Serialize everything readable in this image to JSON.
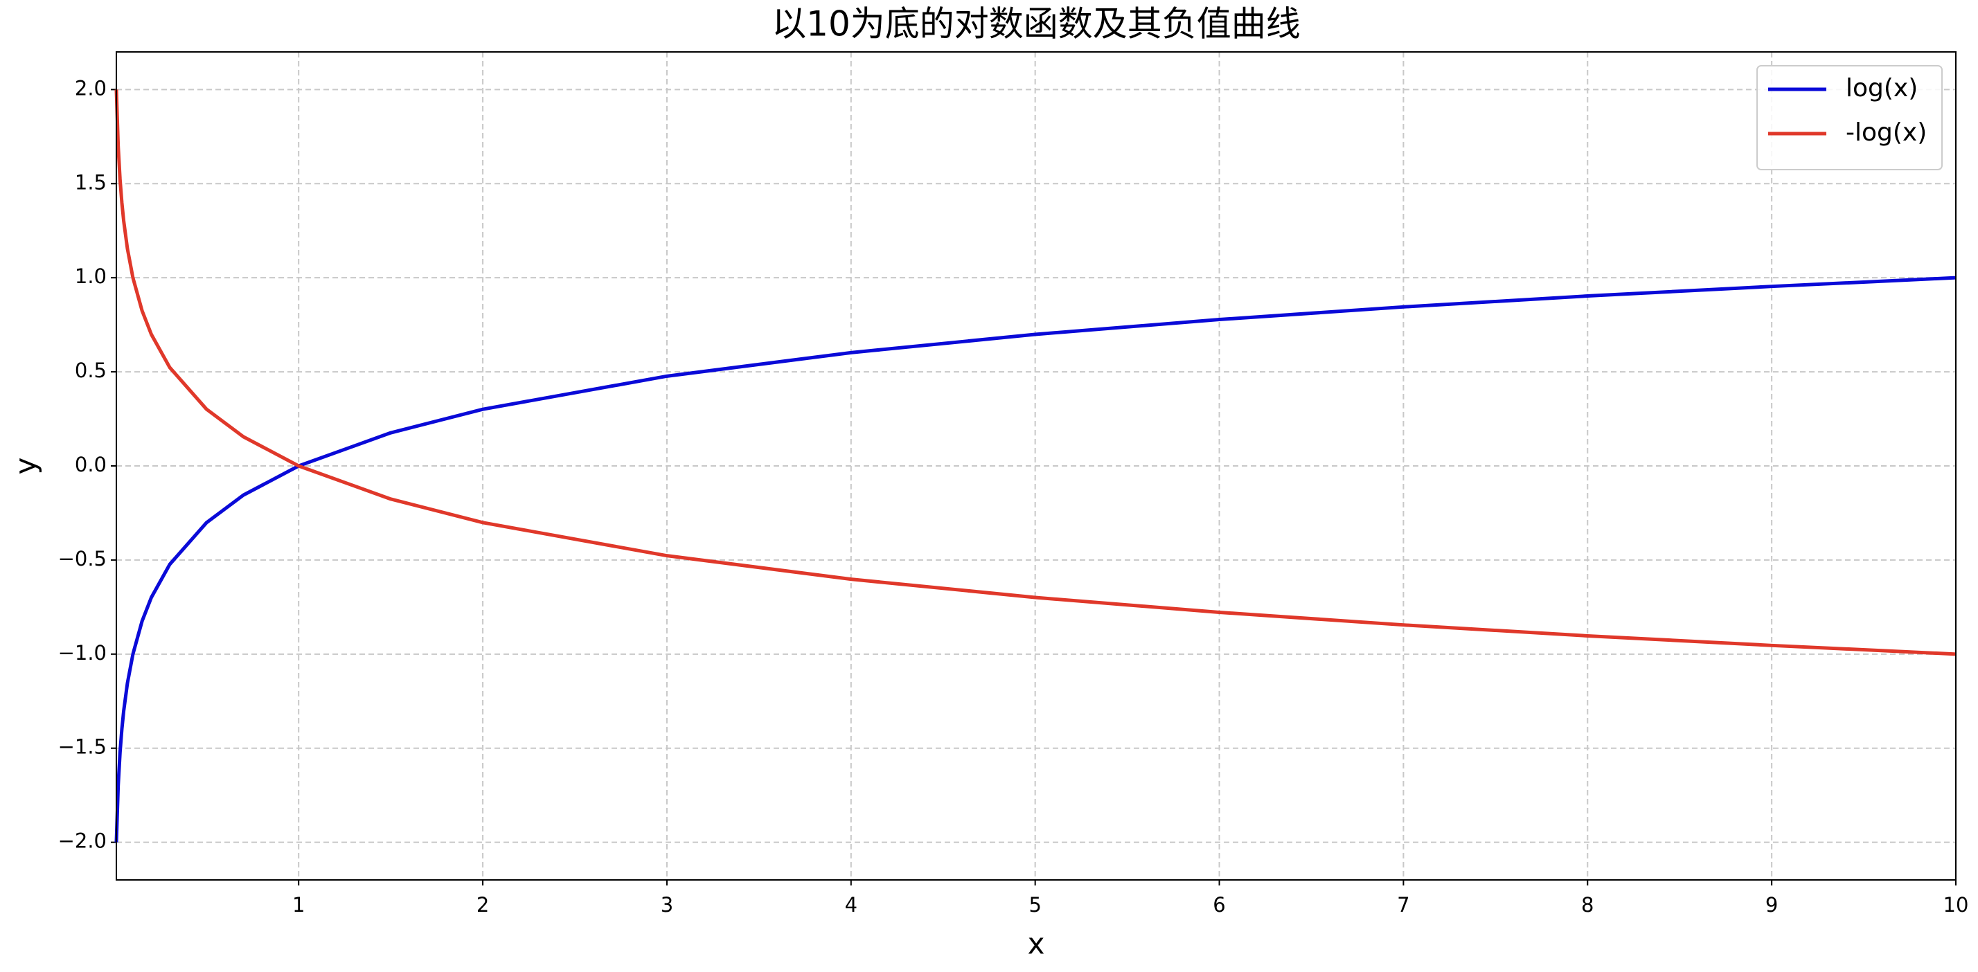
{
  "chart_data": {
    "type": "line",
    "title": "以10为底的对数函数及其负值曲线",
    "x_label": "x",
    "y_label": "y",
    "x": [
      0.01,
      0.02,
      0.03,
      0.04,
      0.05,
      0.07,
      0.1,
      0.15,
      0.2,
      0.3,
      0.5,
      0.7,
      1,
      1.5,
      2,
      3,
      4,
      5,
      6,
      7,
      8,
      9,
      10
    ],
    "series": [
      {
        "name": "log(x)",
        "color": "#0a0ad8",
        "values": [
          -2,
          -1.699,
          -1.523,
          -1.398,
          -1.301,
          -1.155,
          -1,
          -0.824,
          -0.699,
          -0.523,
          -0.301,
          -0.155,
          0,
          0.176,
          0.301,
          0.477,
          0.602,
          0.699,
          0.778,
          0.845,
          0.903,
          0.954,
          1
        ]
      },
      {
        "name": "-log(x)",
        "color": "#e0382a",
        "values": [
          2,
          1.699,
          1.523,
          1.398,
          1.301,
          1.155,
          1,
          0.824,
          0.699,
          0.523,
          0.301,
          0.155,
          0,
          -0.176,
          -0.301,
          -0.477,
          -0.602,
          -0.699,
          -0.778,
          -0.845,
          -0.903,
          -0.954,
          -1
        ]
      }
    ],
    "xlim": [
      0.01,
      10
    ],
    "xticks": [
      1,
      2,
      3,
      4,
      5,
      6,
      7,
      8,
      9,
      10
    ],
    "ylim": [
      -2.2,
      2.2
    ],
    "yticks": [
      {
        "value": -2,
        "label": "−2.0"
      },
      {
        "value": -1.5,
        "label": "−1.5"
      },
      {
        "value": -1,
        "label": "−1.0"
      },
      {
        "value": -0.5,
        "label": "−0.5"
      },
      {
        "value": 0,
        "label": "0.0"
      },
      {
        "value": 0.5,
        "label": "0.5"
      },
      {
        "value": 1,
        "label": "1.0"
      },
      {
        "value": 1.5,
        "label": "1.5"
      },
      {
        "value": 2,
        "label": "2.0"
      }
    ],
    "grid": true,
    "legend": "upper right"
  }
}
